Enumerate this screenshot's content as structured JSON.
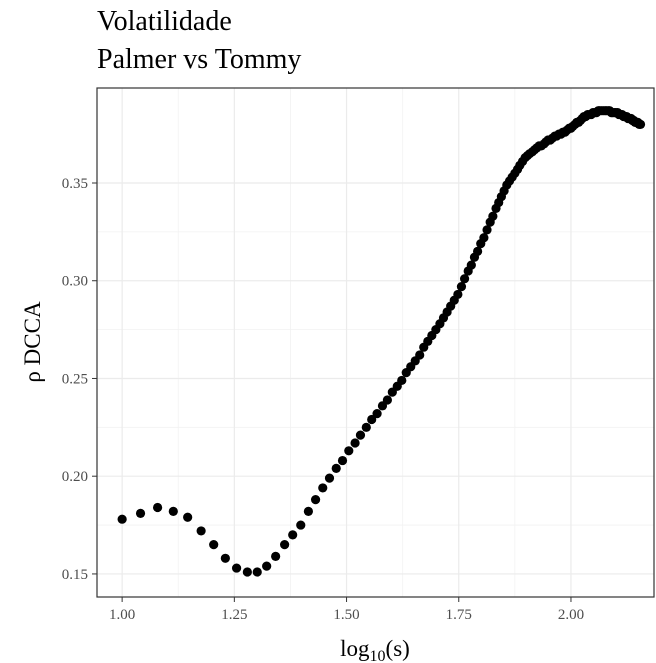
{
  "chart_data": {
    "type": "scatter",
    "title": "Volatilidade",
    "subtitle": "Palmer vs Tommy",
    "xlabel": {
      "base": "log",
      "subscript": "10",
      "suffix": "(s)"
    },
    "ylabel": "ρ DCCA",
    "color": "#000000",
    "grid": true,
    "xlim": [
      0.944,
      2.185
    ],
    "ylim": [
      0.1382,
      0.3986
    ],
    "xticks": [
      {
        "value": 1,
        "label": "1.00"
      },
      1.25,
      {
        "value": 1.5,
        "label": "1.50"
      },
      1.75,
      {
        "value": 2,
        "label": "2.00"
      }
    ],
    "yticks": [
      0.15,
      {
        "value": 0.2,
        "label": "0.20"
      },
      0.25,
      {
        "value": 0.3,
        "label": "0.30"
      },
      0.35
    ],
    "x": [
      1.0,
      1.041,
      1.079,
      1.114,
      1.146,
      1.176,
      1.204,
      1.23,
      1.255,
      1.279,
      1.301,
      1.322,
      1.342,
      1.362,
      1.38,
      1.398,
      1.415,
      1.431,
      1.447,
      1.462,
      1.477,
      1.491,
      1.505,
      1.519,
      1.531,
      1.544,
      1.556,
      1.568,
      1.58,
      1.591,
      1.602,
      1.613,
      1.623,
      1.633,
      1.643,
      1.653,
      1.663,
      1.672,
      1.681,
      1.69,
      1.699,
      1.708,
      1.716,
      1.724,
      1.732,
      1.74,
      1.748,
      1.756,
      1.763,
      1.771,
      1.778,
      1.785,
      1.792,
      1.799,
      1.806,
      1.813,
      1.82,
      1.826,
      1.833,
      1.839,
      1.845,
      1.851,
      1.857,
      1.863,
      1.869,
      1.875,
      1.881,
      1.886,
      1.892,
      1.898,
      1.903,
      1.908,
      1.914,
      1.919,
      1.924,
      1.929,
      1.934,
      1.94,
      1.944,
      1.949,
      1.954,
      1.959,
      1.964,
      1.968,
      1.973,
      1.978,
      1.982,
      1.987,
      1.991,
      1.996,
      2.0,
      2.004,
      2.009,
      2.013,
      2.017,
      2.021,
      2.025,
      2.029,
      2.033,
      2.037,
      2.041,
      2.045,
      2.049,
      2.053,
      2.057,
      2.061,
      2.064,
      2.068,
      2.072,
      2.076,
      2.079,
      2.083,
      2.086,
      2.09,
      2.093,
      2.097,
      2.1,
      2.104,
      2.107,
      2.111,
      2.114,
      2.117,
      2.121,
      2.124,
      2.127,
      2.13,
      2.134,
      2.137,
      2.14,
      2.143,
      2.146,
      2.149,
      2.152,
      2.155
    ],
    "values": [
      0.178,
      0.181,
      0.184,
      0.182,
      0.179,
      0.172,
      0.165,
      0.158,
      0.153,
      0.151,
      0.151,
      0.154,
      0.159,
      0.165,
      0.17,
      0.175,
      0.182,
      0.188,
      0.194,
      0.199,
      0.204,
      0.208,
      0.213,
      0.217,
      0.221,
      0.225,
      0.229,
      0.232,
      0.236,
      0.239,
      0.243,
      0.246,
      0.249,
      0.253,
      0.256,
      0.259,
      0.262,
      0.266,
      0.269,
      0.272,
      0.275,
      0.278,
      0.281,
      0.284,
      0.287,
      0.29,
      0.293,
      0.297,
      0.301,
      0.305,
      0.308,
      0.312,
      0.315,
      0.319,
      0.322,
      0.326,
      0.33,
      0.333,
      0.337,
      0.34,
      0.343,
      0.346,
      0.349,
      0.351,
      0.353,
      0.355,
      0.357,
      0.359,
      0.361,
      0.363,
      0.364,
      0.365,
      0.366,
      0.367,
      0.368,
      0.369,
      0.369,
      0.37,
      0.371,
      0.372,
      0.372,
      0.373,
      0.374,
      0.374,
      0.375,
      0.375,
      0.376,
      0.376,
      0.377,
      0.378,
      0.378,
      0.379,
      0.38,
      0.381,
      0.381,
      0.382,
      0.383,
      0.384,
      0.384,
      0.385,
      0.385,
      0.385,
      0.386,
      0.386,
      0.386,
      0.387,
      0.387,
      0.387,
      0.387,
      0.387,
      0.387,
      0.387,
      0.387,
      0.386,
      0.386,
      0.386,
      0.386,
      0.386,
      0.385,
      0.385,
      0.385,
      0.384,
      0.384,
      0.384,
      0.383,
      0.383,
      0.383,
      0.382,
      0.382,
      0.381,
      0.381,
      0.381,
      0.38,
      0.38
    ]
  }
}
